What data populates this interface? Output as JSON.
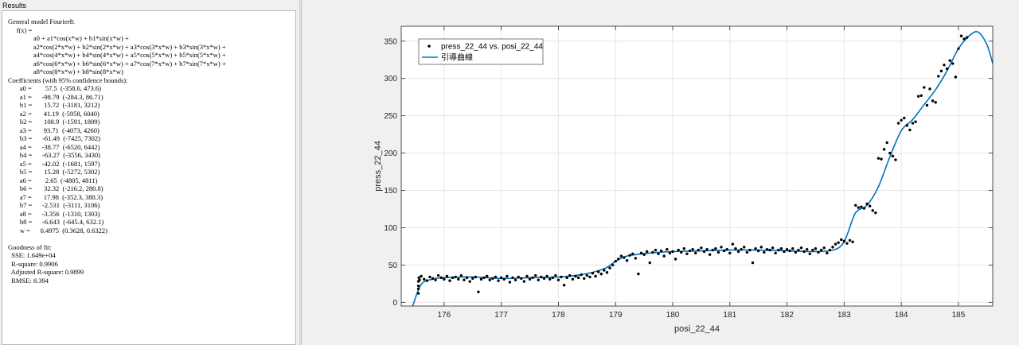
{
  "results": {
    "title": "Results",
    "text": "General model Fourier8:\n     f(x) =\n               a0 + a1*cos(x*w) + b1*sin(x*w) +\n               a2*cos(2*x*w) + b2*sin(2*x*w) + a3*cos(3*x*w) + b3*sin(3*x*w) +\n               a4*cos(4*x*w) + b4*sin(4*x*w) + a5*cos(5*x*w) + b5*sin(5*x*w) +\n               a6*cos(6*x*w) + b6*sin(6*x*w) + a7*cos(7*x*w) + b7*sin(7*x*w) +\n               a8*cos(8*x*w) + b8*sin(8*x*w)\nCoefficients (with 95% confidence bounds):\n       a0 =        57.5  (-358.6, 473.6)\n       a1 =      -98.79  (-284.3, 86.71)\n       b1 =       15.72  (-3181, 3212)\n       a2 =       41.19  (-5958, 6040)\n       b2 =       108.9  (-1591, 1809)\n       a3 =       93.71  (-4073, 4260)\n       b3 =      -61.49  (-7425, 7302)\n       a4 =      -38.77  (-6520, 6442)\n       b4 =      -63.27  (-3556, 3430)\n       a5 =      -42.02  (-1681, 1597)\n       b5 =       15.28  (-5272, 5302)\n       a6 =        2.65  (-4805, 4811)\n       b6 =       32.32  (-216.2, 280.8)\n       a7 =       17.98  (-352.3, 388.3)\n       b7 =      -2.531  (-3111, 3106)\n       a8 =      -3.356  (-1310, 1303)\n       b8 =      -6.643  (-645.4, 632.1)\n       w =      0.4975  (0.3628, 0.6322)\n\nGoodness of fit:\n  SSE: 1.649e+04\n  R-square: 0.9906\n  Adjusted R-square: 0.9899\n  RMSE: 8.394"
  },
  "chart_data": {
    "type": "scatter",
    "xlabel": "posi_22_44",
    "ylabel": "press_22_44",
    "xlim": [
      175.25,
      185.6
    ],
    "ylim": [
      -5,
      370
    ],
    "xticks": [
      176,
      177,
      178,
      179,
      180,
      181,
      182,
      183,
      184,
      185
    ],
    "yticks": [
      0,
      50,
      100,
      150,
      200,
      250,
      300,
      350
    ],
    "grid": true,
    "legend_position": "top-left",
    "legend": [
      {
        "name": "press_22_44 vs. posi_22_44",
        "marker": "dot"
      },
      {
        "name": "引導曲線",
        "marker": "line"
      }
    ],
    "colors": {
      "points": "#000000",
      "fit": "#0072bd"
    },
    "fit_curve": {
      "x": [
        175.45,
        175.6,
        175.8,
        176.0,
        176.5,
        177.0,
        177.5,
        178.0,
        178.4,
        178.8,
        179.0,
        179.2,
        179.6,
        180.0,
        180.5,
        181.0,
        181.5,
        182.0,
        182.5,
        182.8,
        182.95,
        183.05,
        183.2,
        183.4,
        183.6,
        183.8,
        184.0,
        184.2,
        184.4,
        184.6,
        184.8,
        185.0,
        185.2,
        185.35,
        185.5,
        185.6
      ],
      "y": [
        -5,
        24,
        31,
        33,
        34,
        32,
        33,
        34,
        37,
        45,
        55,
        62,
        66,
        68,
        69,
        70,
        70,
        69,
        68,
        70,
        76,
        90,
        120,
        130,
        155,
        195,
        230,
        245,
        265,
        285,
        310,
        340,
        358,
        362,
        345,
        320
      ]
    },
    "points": [
      [
        175.55,
        12
      ],
      [
        175.55,
        18
      ],
      [
        175.55,
        22
      ],
      [
        175.55,
        28
      ],
      [
        175.56,
        33
      ],
      [
        175.57,
        30
      ],
      [
        175.6,
        35
      ],
      [
        175.65,
        31
      ],
      [
        175.7,
        29
      ],
      [
        175.75,
        34
      ],
      [
        175.8,
        32
      ],
      [
        175.85,
        30
      ],
      [
        175.9,
        36
      ],
      [
        175.95,
        33
      ],
      [
        176.0,
        31
      ],
      [
        176.05,
        35
      ],
      [
        176.1,
        29
      ],
      [
        176.15,
        33
      ],
      [
        176.2,
        34
      ],
      [
        176.25,
        31
      ],
      [
        176.3,
        36
      ],
      [
        176.35,
        30
      ],
      [
        176.4,
        33
      ],
      [
        176.45,
        28
      ],
      [
        176.5,
        32
      ],
      [
        176.55,
        34
      ],
      [
        176.6,
        14
      ],
      [
        176.65,
        31
      ],
      [
        176.7,
        33
      ],
      [
        176.75,
        35
      ],
      [
        176.8,
        30
      ],
      [
        176.85,
        32
      ],
      [
        176.9,
        34
      ],
      [
        176.95,
        29
      ],
      [
        177.0,
        33
      ],
      [
        177.05,
        31
      ],
      [
        177.1,
        35
      ],
      [
        177.15,
        27
      ],
      [
        177.2,
        33
      ],
      [
        177.25,
        30
      ],
      [
        177.3,
        34
      ],
      [
        177.35,
        32
      ],
      [
        177.4,
        28
      ],
      [
        177.45,
        35
      ],
      [
        177.5,
        31
      ],
      [
        177.55,
        33
      ],
      [
        177.6,
        36
      ],
      [
        177.65,
        30
      ],
      [
        177.7,
        34
      ],
      [
        177.75,
        32
      ],
      [
        177.8,
        35
      ],
      [
        177.85,
        31
      ],
      [
        177.9,
        33
      ],
      [
        177.95,
        36
      ],
      [
        178.0,
        30
      ],
      [
        178.05,
        34
      ],
      [
        178.1,
        23
      ],
      [
        178.15,
        33
      ],
      [
        178.2,
        36
      ],
      [
        178.25,
        31
      ],
      [
        178.3,
        35
      ],
      [
        178.35,
        33
      ],
      [
        178.4,
        37
      ],
      [
        178.45,
        32
      ],
      [
        178.5,
        36
      ],
      [
        178.55,
        34
      ],
      [
        178.6,
        39
      ],
      [
        178.65,
        35
      ],
      [
        178.7,
        41
      ],
      [
        178.75,
        38
      ],
      [
        178.8,
        43
      ],
      [
        178.85,
        40
      ],
      [
        178.9,
        46
      ],
      [
        178.95,
        50
      ],
      [
        179.0,
        55
      ],
      [
        179.05,
        58
      ],
      [
        179.1,
        62
      ],
      [
        179.15,
        60
      ],
      [
        179.2,
        56
      ],
      [
        179.25,
        63
      ],
      [
        179.3,
        65
      ],
      [
        179.35,
        59
      ],
      [
        179.4,
        38
      ],
      [
        179.45,
        66
      ],
      [
        179.5,
        64
      ],
      [
        179.55,
        68
      ],
      [
        179.6,
        53
      ],
      [
        179.65,
        67
      ],
      [
        179.7,
        70
      ],
      [
        179.75,
        65
      ],
      [
        179.8,
        69
      ],
      [
        179.85,
        62
      ],
      [
        179.9,
        71
      ],
      [
        179.95,
        66
      ],
      [
        180.0,
        68
      ],
      [
        180.05,
        58
      ],
      [
        180.1,
        70
      ],
      [
        180.15,
        67
      ],
      [
        180.2,
        72
      ],
      [
        180.25,
        65
      ],
      [
        180.3,
        69
      ],
      [
        180.35,
        71
      ],
      [
        180.4,
        66
      ],
      [
        180.45,
        70
      ],
      [
        180.5,
        73
      ],
      [
        180.55,
        68
      ],
      [
        180.6,
        71
      ],
      [
        180.65,
        64
      ],
      [
        180.7,
        70
      ],
      [
        180.75,
        72
      ],
      [
        180.8,
        67
      ],
      [
        180.85,
        74
      ],
      [
        180.9,
        69
      ],
      [
        180.95,
        71
      ],
      [
        181.0,
        66
      ],
      [
        181.05,
        78
      ],
      [
        181.1,
        72
      ],
      [
        181.15,
        68
      ],
      [
        181.2,
        71
      ],
      [
        181.25,
        74
      ],
      [
        181.3,
        67
      ],
      [
        181.35,
        70
      ],
      [
        181.4,
        53
      ],
      [
        181.45,
        72
      ],
      [
        181.5,
        69
      ],
      [
        181.55,
        74
      ],
      [
        181.6,
        67
      ],
      [
        181.65,
        71
      ],
      [
        181.7,
        70
      ],
      [
        181.75,
        73
      ],
      [
        181.8,
        66
      ],
      [
        181.85,
        70
      ],
      [
        181.9,
        72
      ],
      [
        181.95,
        68
      ],
      [
        182.0,
        71
      ],
      [
        182.05,
        69
      ],
      [
        182.1,
        72
      ],
      [
        182.15,
        67
      ],
      [
        182.2,
        70
      ],
      [
        182.25,
        73
      ],
      [
        182.3,
        68
      ],
      [
        182.35,
        71
      ],
      [
        182.4,
        65
      ],
      [
        182.45,
        70
      ],
      [
        182.5,
        72
      ],
      [
        182.55,
        67
      ],
      [
        182.6,
        70
      ],
      [
        182.65,
        73
      ],
      [
        182.7,
        66
      ],
      [
        182.75,
        70
      ],
      [
        182.8,
        74
      ],
      [
        182.85,
        78
      ],
      [
        182.9,
        80
      ],
      [
        182.95,
        84
      ],
      [
        183.0,
        82
      ],
      [
        183.05,
        79
      ],
      [
        183.1,
        83
      ],
      [
        183.15,
        81
      ],
      [
        183.2,
        130
      ],
      [
        183.25,
        127
      ],
      [
        183.3,
        128
      ],
      [
        183.35,
        126
      ],
      [
        183.4,
        132
      ],
      [
        183.45,
        129
      ],
      [
        183.5,
        123
      ],
      [
        183.55,
        120
      ],
      [
        183.6,
        193
      ],
      [
        183.65,
        192
      ],
      [
        183.7,
        205
      ],
      [
        183.75,
        214
      ],
      [
        183.8,
        200
      ],
      [
        183.85,
        196
      ],
      [
        183.9,
        191
      ],
      [
        183.95,
        240
      ],
      [
        184.0,
        244
      ],
      [
        184.05,
        247
      ],
      [
        184.1,
        237
      ],
      [
        184.15,
        231
      ],
      [
        184.2,
        240
      ],
      [
        184.25,
        242
      ],
      [
        184.3,
        276
      ],
      [
        184.35,
        277
      ],
      [
        184.4,
        288
      ],
      [
        184.45,
        264
      ],
      [
        184.5,
        286
      ],
      [
        184.55,
        270
      ],
      [
        184.6,
        268
      ],
      [
        184.65,
        303
      ],
      [
        184.7,
        310
      ],
      [
        184.75,
        318
      ],
      [
        184.8,
        313
      ],
      [
        184.85,
        324
      ],
      [
        184.9,
        320
      ],
      [
        184.95,
        302
      ],
      [
        185.0,
        340
      ],
      [
        185.05,
        357
      ],
      [
        185.1,
        353
      ],
      [
        185.15,
        355
      ]
    ]
  }
}
